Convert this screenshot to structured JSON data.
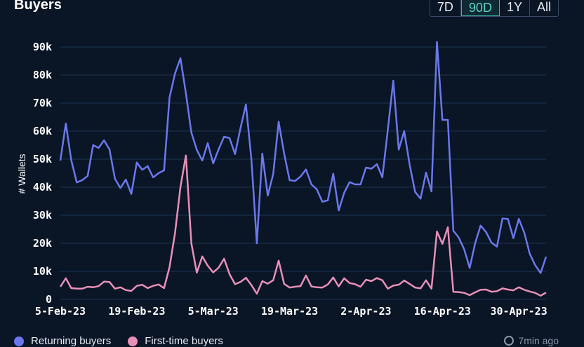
{
  "title": "Buyers",
  "range_buttons": [
    "7D",
    "90D",
    "1Y",
    "All"
  ],
  "active_range": "90D",
  "updated_text": "7min ago",
  "colors": {
    "returning": "#6b78ec",
    "first_time": "#e890b8",
    "active": "#5ed1c7",
    "background": "#0a1526"
  },
  "chart_data": {
    "type": "line",
    "ylabel": "# Wallets",
    "ylim": [
      0,
      90000
    ],
    "y_ticks": [
      "0",
      "10k",
      "20k",
      "30k",
      "40k",
      "50k",
      "60k",
      "70k",
      "80k",
      "90k"
    ],
    "x_tick_labels": [
      "5-Feb-23",
      "19-Feb-23",
      "5-Mar-23",
      "19-Mar-23",
      "2-Apr-23",
      "16-Apr-23",
      "30-Apr-23"
    ],
    "x_start": "2023-02-05",
    "grid": true,
    "legend_position": "bottom-left",
    "series": [
      {
        "name": "Returning buyers",
        "values": [
          49500,
          62700,
          49600,
          41700,
          42500,
          44000,
          55000,
          54000,
          56700,
          53500,
          43000,
          39700,
          42700,
          37600,
          48800,
          46200,
          47500,
          43500,
          45000,
          46000,
          72000,
          80500,
          86000,
          73500,
          59500,
          53300,
          49500,
          55700,
          48500,
          53500,
          58000,
          57500,
          51800,
          61000,
          69500,
          50000,
          20000,
          52000,
          37000,
          44700,
          63300,
          52000,
          42500,
          42200,
          43800,
          46300,
          41000,
          39200,
          34800,
          35300,
          44800,
          31700,
          38000,
          41800,
          41000,
          41000,
          47000,
          46600,
          48200,
          43500,
          60500,
          78000,
          53400,
          60000,
          48000,
          38300,
          35900,
          45200,
          38500,
          91800,
          64000,
          64000,
          24500,
          22000,
          17800,
          11200,
          20000,
          26300,
          24000,
          20200,
          18800,
          28800,
          28700,
          21800,
          28700,
          23800,
          16300,
          12200,
          9400,
          15200
        ],
        "color": "#6b78ec"
      },
      {
        "name": "First-time buyers",
        "values": [
          4500,
          7500,
          4000,
          3800,
          3800,
          4500,
          4300,
          4700,
          6300,
          6200,
          3800,
          4300,
          3300,
          3000,
          4800,
          5200,
          4000,
          4800,
          5300,
          4000,
          11500,
          23500,
          40000,
          51300,
          20000,
          9500,
          15300,
          12000,
          9600,
          11300,
          14500,
          9000,
          5400,
          6200,
          7700,
          5100,
          2000,
          6500,
          5600,
          6800,
          13800,
          5500,
          4200,
          4500,
          4700,
          8500,
          4600,
          4300,
          4200,
          5300,
          7800,
          4600,
          7500,
          5800,
          5400,
          4500,
          7000,
          6500,
          7600,
          6800,
          3800,
          4900,
          5200,
          6700,
          5500,
          4200,
          3900,
          6800,
          3800,
          24200,
          19800,
          25700,
          2700,
          2600,
          2300,
          1500,
          2500,
          3400,
          3500,
          2700,
          2900,
          3900,
          3500,
          3200,
          4300,
          3400,
          2800,
          2300,
          1300,
          2400
        ],
        "color": "#e890b8"
      }
    ]
  }
}
